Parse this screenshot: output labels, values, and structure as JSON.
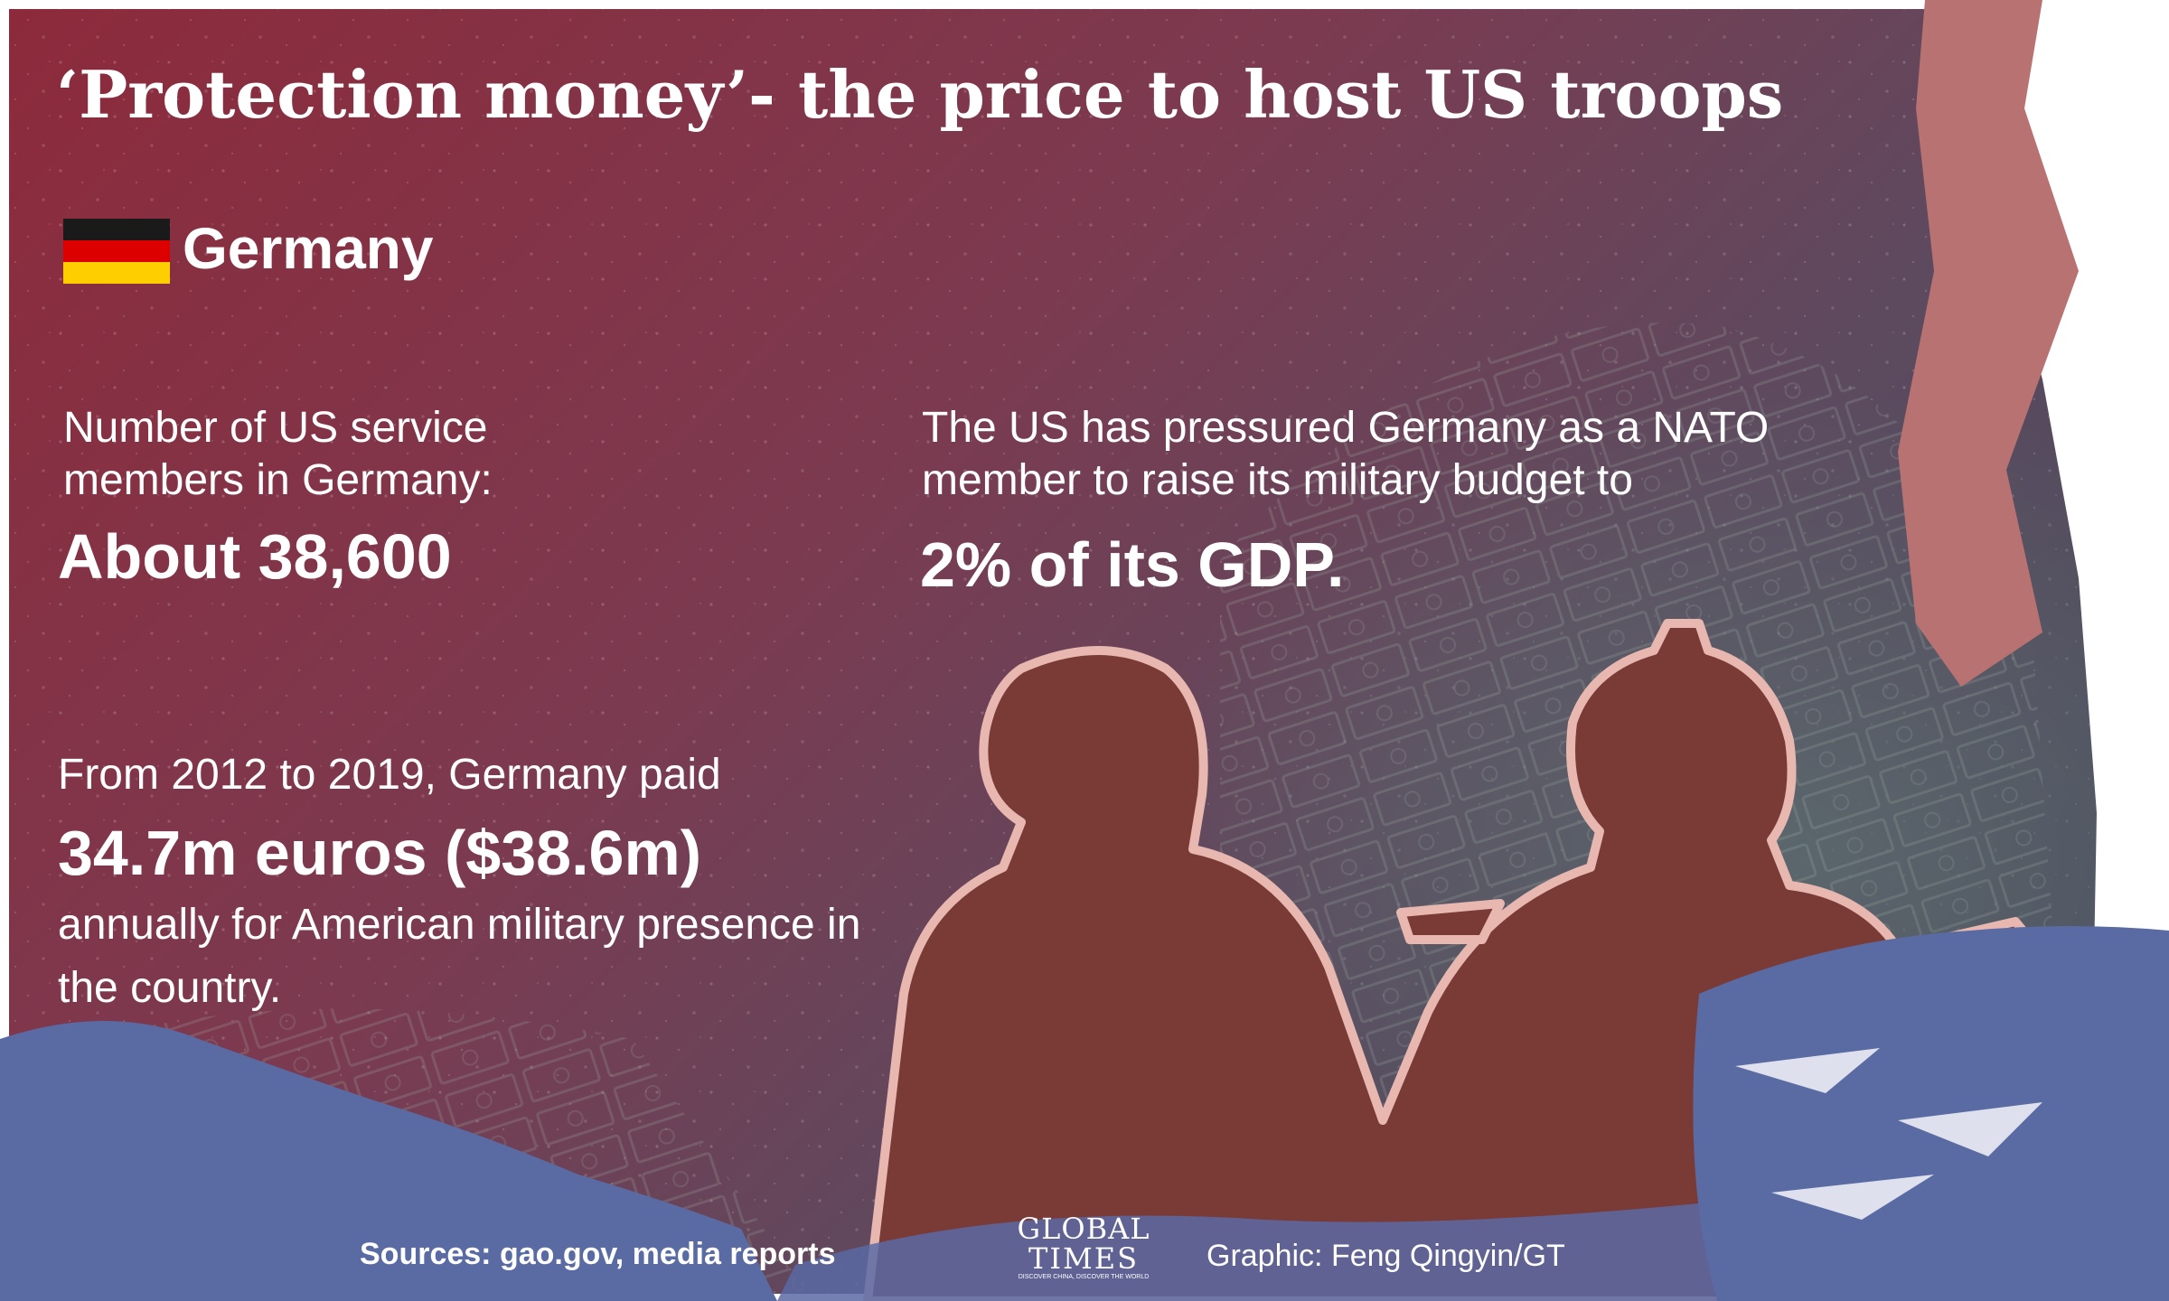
{
  "title": "‘Protection money’- the price to host US troops",
  "country": "Germany",
  "flag_colors": [
    "#1a1a1a",
    "#dd0000",
    "#ffce00"
  ],
  "facts": {
    "troops_label": "Number of US service members in Germany:",
    "troops_value": "About 38,600",
    "budget_text": "The US has pressured Germany as a NATO member to raise its military budget to",
    "budget_value": "2% of its GDP.",
    "payment_intro": "From 2012 to 2019, Germany paid",
    "payment_value": "34.7m euros ($38.6m)",
    "payment_outro": "annually for American military presence in the country."
  },
  "footer": {
    "sources": "Sources: gao.gov, media reports",
    "logo_top": "GLOBAL",
    "logo_bottom": "TIMES",
    "logo_tagline": "DISCOVER CHINA, DISCOVER THE WORLD",
    "credit": "Graphic: Feng Qingyin/GT"
  },
  "colors": {
    "background_top": "#8c2b3e",
    "background_mid": "#6a4a5e",
    "soldier_fill": "#7a3a36",
    "soldier_outline": "#e8b8b0",
    "blue_band": "#5a6aa3",
    "pink_band": "#b87272"
  }
}
